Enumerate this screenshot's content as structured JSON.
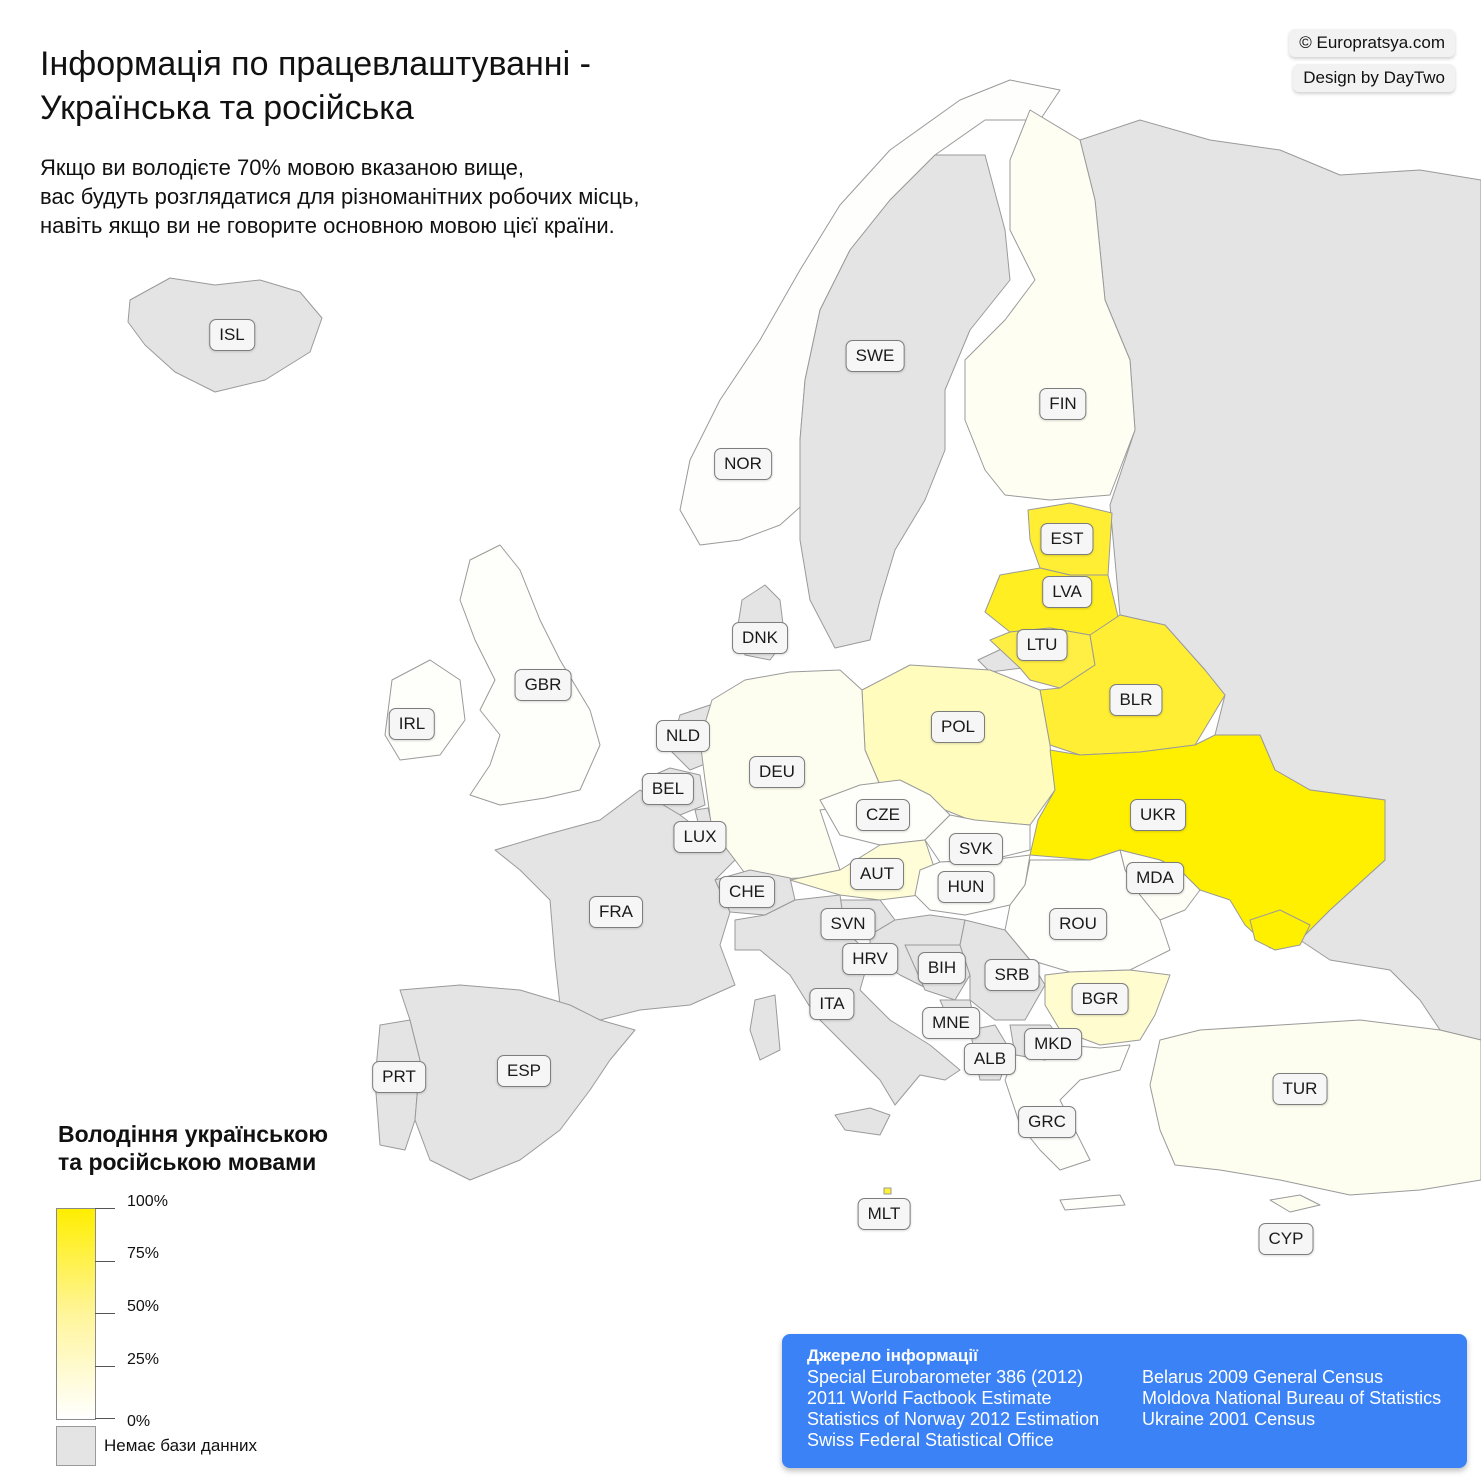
{
  "title": {
    "line1": "Інформація по працевлаштуванні -",
    "line2": "Українська та російська"
  },
  "subtitle": {
    "line1": "Якщо ви володієте 70% мовою вказаною вище,",
    "line2": "вас будуть розглядатися для різноманітних робочих місць,",
    "line3": "навіть якщо ви не говорите основною мовою цієї країни."
  },
  "credits": {
    "site": "© Europratsya.com",
    "design": "Design by DayTwo"
  },
  "colors": {
    "no_data": "#e4e4e4",
    "scale_min": "#ffffff",
    "scale_max": "#ffee00",
    "border": "#9a9a9a",
    "sources_bg": "#3b82f6"
  },
  "countries": [
    {
      "code": "ISL"
    },
    {
      "code": "NOR"
    },
    {
      "code": "SWE"
    },
    {
      "code": "FIN"
    },
    {
      "code": "EST"
    },
    {
      "code": "LVA"
    },
    {
      "code": "LTU"
    },
    {
      "code": "BLR"
    },
    {
      "code": "DNK"
    },
    {
      "code": "GBR"
    },
    {
      "code": "IRL"
    },
    {
      "code": "NLD"
    },
    {
      "code": "BEL"
    },
    {
      "code": "LUX"
    },
    {
      "code": "DEU"
    },
    {
      "code": "POL"
    },
    {
      "code": "UKR"
    },
    {
      "code": "CZE"
    },
    {
      "code": "SVK"
    },
    {
      "code": "AUT"
    },
    {
      "code": "HUN"
    },
    {
      "code": "MDA"
    },
    {
      "code": "CHE"
    },
    {
      "code": "FRA"
    },
    {
      "code": "ROU"
    },
    {
      "code": "SVN"
    },
    {
      "code": "HRV"
    },
    {
      "code": "BIH"
    },
    {
      "code": "SRB"
    },
    {
      "code": "BGR"
    },
    {
      "code": "ITA"
    },
    {
      "code": "MNE"
    },
    {
      "code": "MKD"
    },
    {
      "code": "ALB"
    },
    {
      "code": "PRT"
    },
    {
      "code": "ESP"
    },
    {
      "code": "TUR"
    },
    {
      "code": "GRC"
    },
    {
      "code": "MLT"
    },
    {
      "code": "CYP"
    }
  ],
  "legend": {
    "title_line1": "Володіння українською",
    "title_line2": "та російською мовами",
    "ticks": [
      "100%",
      "75%",
      "50%",
      "25%",
      "0%"
    ],
    "no_data": "Немає бази данних"
  },
  "sources": {
    "title": "Джерело інформації",
    "col1": [
      "Special Eurobarometer 386 (2012)",
      "2011 World Factbook Estimate",
      "Statistics of Norway 2012 Estimation",
      "Swiss Federal Statistical Office"
    ],
    "col2": [
      "Belarus 2009 General Census",
      "Moldova National Bureau of Statistics",
      "Ukraine 2001 Census"
    ]
  }
}
